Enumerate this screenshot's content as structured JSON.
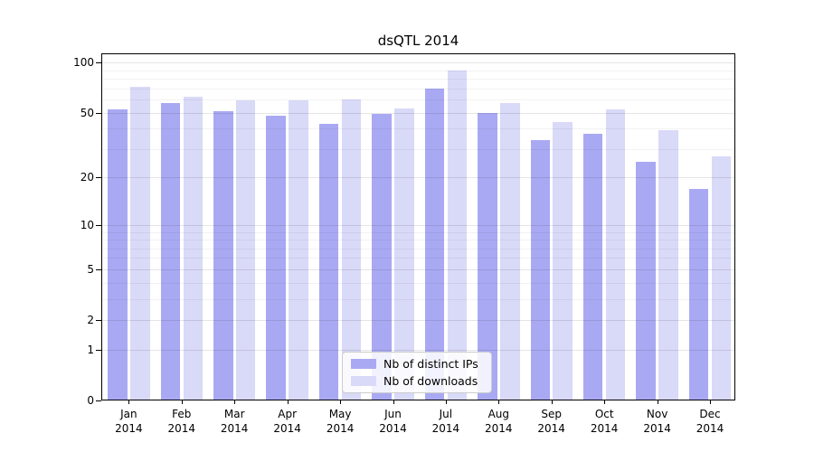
{
  "chart_data": {
    "type": "bar",
    "title": "dsQTL 2014",
    "categories": [
      "Jan 2014",
      "Feb 2014",
      "Mar 2014",
      "Apr 2014",
      "May 2014",
      "Jun 2014",
      "Jul 2014",
      "Aug 2014",
      "Sep 2014",
      "Oct 2014",
      "Nov 2014",
      "Dec 2014"
    ],
    "series": [
      {
        "name": "Nb of distinct IPs",
        "color": "#a9a9f3",
        "values": [
          52,
          57,
          51,
          48,
          43,
          49,
          70,
          50,
          34,
          37,
          25,
          17
        ]
      },
      {
        "name": "Nb of downloads",
        "color": "#d9d9f8",
        "values": [
          72,
          62,
          59,
          59,
          60,
          53,
          90,
          57,
          44,
          52,
          39,
          27
        ]
      }
    ],
    "y_axis": {
      "scale": "log1p",
      "tick_values": [
        0,
        1,
        2,
        5,
        10,
        20,
        50,
        100
      ],
      "tick_labels": [
        "0",
        "1",
        "2",
        "5",
        "10",
        "20",
        "50",
        "100"
      ],
      "minor_gridline_values": [
        3,
        4,
        6,
        7,
        8,
        9,
        30,
        40,
        60,
        70,
        80,
        90
      ],
      "ylim": [
        0,
        114
      ]
    },
    "xlabel": "",
    "ylabel": "",
    "grid": true,
    "legend_position": "lower-center"
  }
}
